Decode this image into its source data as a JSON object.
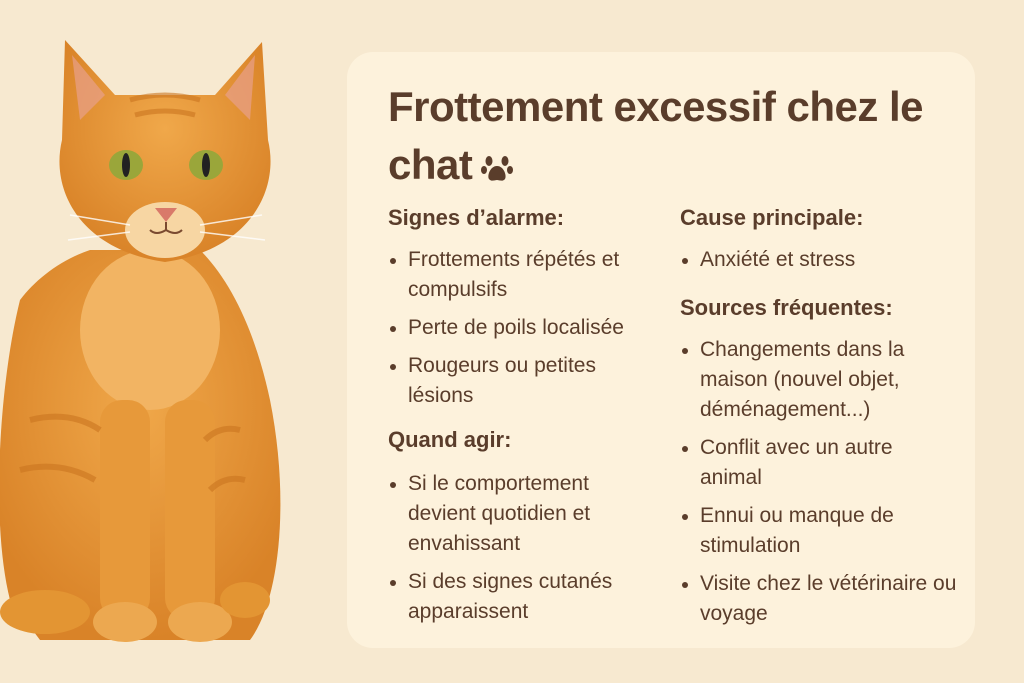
{
  "title": "Frottement excessif chez le chat",
  "colors": {
    "background": "#f7e9d0",
    "card": "#fdf2dc",
    "text": "#5a3d2b",
    "cat": "#e3932f"
  },
  "icons": {
    "title_icon": "paw-icon"
  },
  "left": {
    "signs_heading": "Signes d’alarme:",
    "signs": [
      "Frottements répétés et compulsifs",
      "Perte de poils localisée",
      "Rougeurs ou petites lésions"
    ],
    "when_heading": "Quand agir:",
    "when": [
      "Si le comportement devient quotidien et envahissant",
      "Si des signes cutanés apparaissent"
    ]
  },
  "right": {
    "cause_heading": "Cause principale:",
    "causes": [
      "Anxiété et stress"
    ],
    "sources_heading": "Sources fréquentes:",
    "sources": [
      "Changements dans la maison (nouvel objet, déménagement...)",
      "Conflit avec un autre animal",
      "Ennui ou manque de stimulation",
      "Visite chez le vétérinaire ou voyage"
    ]
  }
}
